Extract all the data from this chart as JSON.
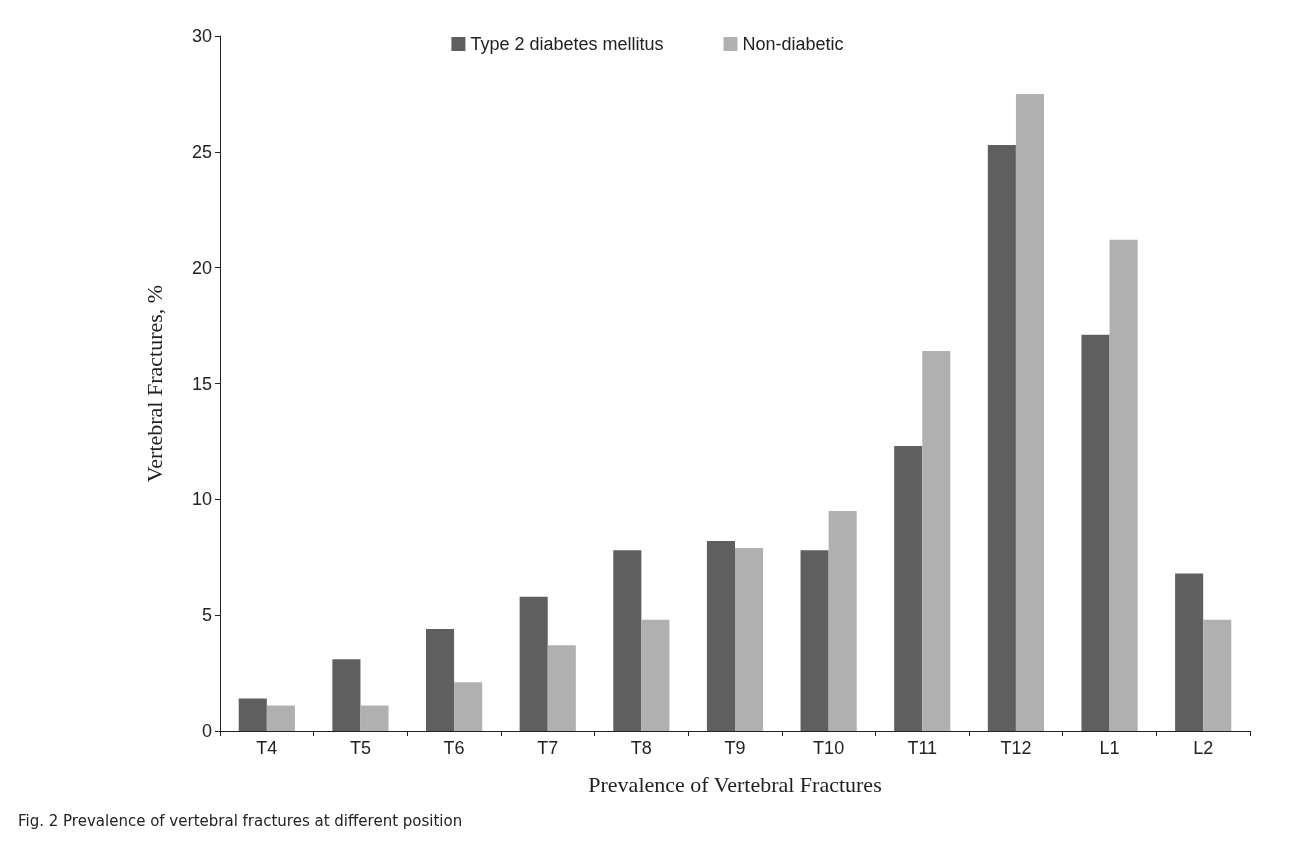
{
  "chart_data": {
    "type": "bar",
    "xlabel": "Prevalence of Vertebral Fractures",
    "ylabel": "Vertebral Fractures, %",
    "categories": [
      "T4",
      "T5",
      "T6",
      "T7",
      "T8",
      "T9",
      "T10",
      "T11",
      "T12",
      "L1",
      "L2"
    ],
    "series": [
      {
        "name": "Type 2 diabetes mellitus",
        "color": "#5f5f5f",
        "values": [
          1.4,
          3.1,
          4.4,
          5.8,
          7.8,
          8.2,
          7.8,
          12.3,
          25.3,
          17.1,
          6.8
        ]
      },
      {
        "name": "Non-diabetic",
        "color": "#b0b0b0",
        "values": [
          1.1,
          1.1,
          2.1,
          3.7,
          4.8,
          7.9,
          9.5,
          16.4,
          27.5,
          21.2,
          4.8
        ]
      }
    ],
    "ylim": [
      0,
      30
    ],
    "yticks": [
      0,
      5,
      10,
      15,
      20,
      25,
      30
    ],
    "grid": false,
    "legend": "top",
    "annotations": [
      "Fig. 2 Prevalence of vertebral fractures at different position"
    ]
  }
}
